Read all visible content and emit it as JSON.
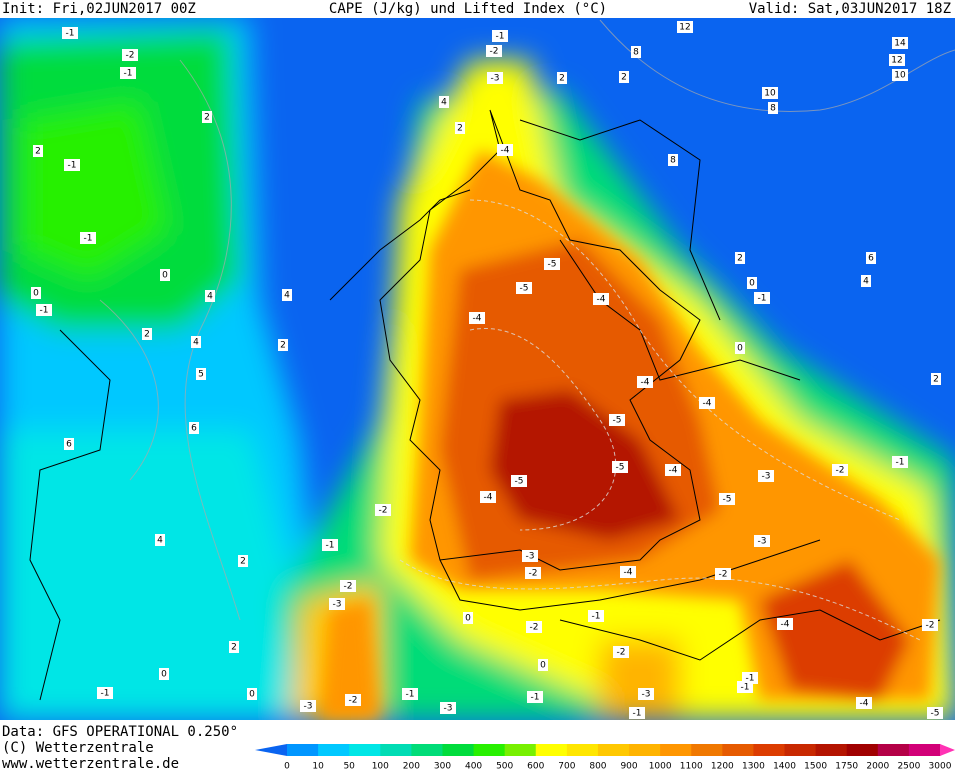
{
  "header": {
    "init": "Init: Fri,02JUN2017 00Z",
    "title": "CAPE (J/kg) und Lifted Index (°C)",
    "valid": "Valid: Sat,03JUN2017 18Z"
  },
  "footer": {
    "data": "Data: GFS OPERATIONAL 0.250°",
    "copyright": "(C) Wetterzentrale",
    "url": "www.wetterzentrale.de"
  },
  "colorbar": {
    "labels": [
      "0",
      "10",
      "50",
      "100",
      "200",
      "300",
      "400",
      "500",
      "600",
      "700",
      "800",
      "900",
      "1000",
      "1100",
      "1200",
      "1300",
      "1400",
      "1500",
      "1750",
      "2000",
      "2500",
      "3000"
    ],
    "colors": [
      "#0a64f0",
      "#0096ff",
      "#00c8ff",
      "#00e6e6",
      "#00dcb4",
      "#00dc78",
      "#00dc3c",
      "#28f000",
      "#78f000",
      "#ffff00",
      "#ffe600",
      "#ffc800",
      "#ffb400",
      "#ff9600",
      "#f07800",
      "#e65a00",
      "#dc3c00",
      "#c82800",
      "#b41400",
      "#a00000",
      "#b40046",
      "#d20078",
      "#ff32b4"
    ]
  },
  "map": {
    "labels": [
      "-1",
      "-2",
      "-1",
      "2",
      "2",
      "-1",
      "-1",
      "0",
      "0",
      "-1",
      "4",
      "4",
      "2",
      "4",
      "2",
      "5",
      "6",
      "6",
      "4",
      "2",
      "2",
      "-1",
      "0",
      "0",
      "-3",
      "-2",
      "-1",
      "-1",
      "-2",
      "-3",
      "4",
      "2",
      "-4",
      "-5",
      "-5",
      "-4",
      "-4",
      "-4",
      "-4",
      "-5",
      "-5",
      "-4",
      "-5",
      "-4",
      "-5",
      "-3",
      "-2",
      "-1",
      "-3",
      "-2",
      "-4",
      "-3",
      "-2",
      "-2",
      "-1",
      "-2",
      "-3",
      "0",
      "-2",
      "-1",
      "-2",
      "0",
      "-3",
      "-1",
      "-1",
      "-1",
      "-4",
      "-4",
      "-2",
      "-5",
      "-1",
      "-3",
      "12",
      "14",
      "12",
      "10",
      "10",
      "8",
      "8",
      "8",
      "2",
      "0",
      "-1",
      "0",
      "6",
      "4",
      "2",
      "2",
      "2"
    ]
  }
}
